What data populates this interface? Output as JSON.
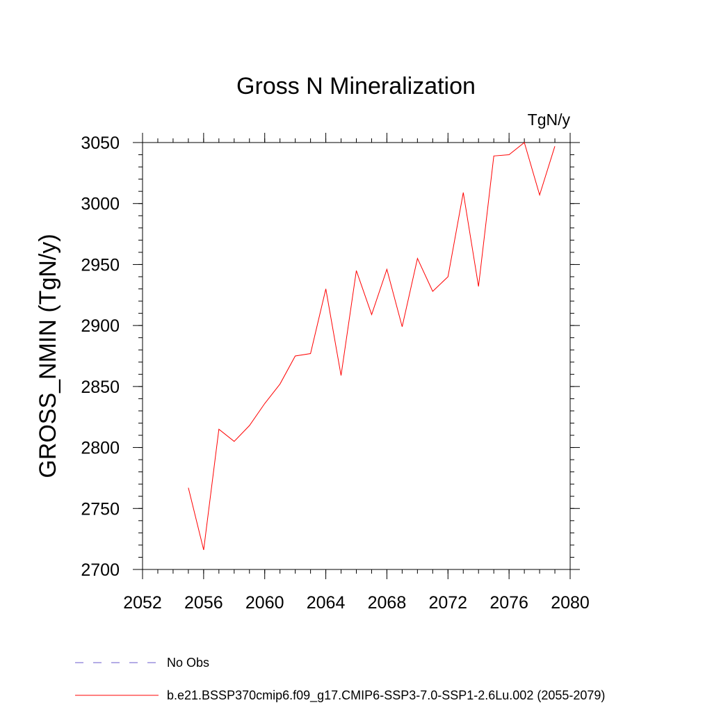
{
  "chart_data": {
    "type": "line",
    "title": "Gross N Mineralization",
    "units": "TgN/y",
    "xlabel": "",
    "ylabel": "GROSS_NMIN  (TgN/y)",
    "xlim": [
      2052,
      2080
    ],
    "ylim": [
      2700,
      3050
    ],
    "xticks": [
      2052,
      2056,
      2060,
      2064,
      2068,
      2072,
      2076,
      2080
    ],
    "yticks": [
      2700,
      2750,
      2800,
      2850,
      2900,
      2950,
      3000,
      3050
    ],
    "series": [
      {
        "name": "b.e21.BSSP370cmip6.f09_g17.CMIP6-SSP3-7.0-SSP1-2.6Lu.002 (2055-2079)",
        "color": "#ff0000",
        "x": [
          2055,
          2056,
          2057,
          2058,
          2059,
          2060,
          2061,
          2062,
          2063,
          2064,
          2065,
          2066,
          2067,
          2068,
          2069,
          2070,
          2071,
          2072,
          2073,
          2074,
          2075,
          2076,
          2077,
          2078,
          2079
        ],
        "y": [
          2767,
          2716,
          2815,
          2805,
          2818,
          2836,
          2852,
          2875,
          2877,
          2930,
          2859,
          2945,
          2909,
          2946,
          2899,
          2955,
          2928,
          2940,
          3009,
          2932,
          3039,
          3040,
          3050,
          3007,
          3047
        ]
      }
    ],
    "legend": [
      {
        "label": "No Obs",
        "color": "#6a5acd",
        "style": "dashed"
      },
      {
        "label": "b.e21.BSSP370cmip6.f09_g17.CMIP6-SSP3-7.0-SSP1-2.6Lu.002 (2055-2079)",
        "color": "#ff0000",
        "style": "solid"
      }
    ]
  }
}
